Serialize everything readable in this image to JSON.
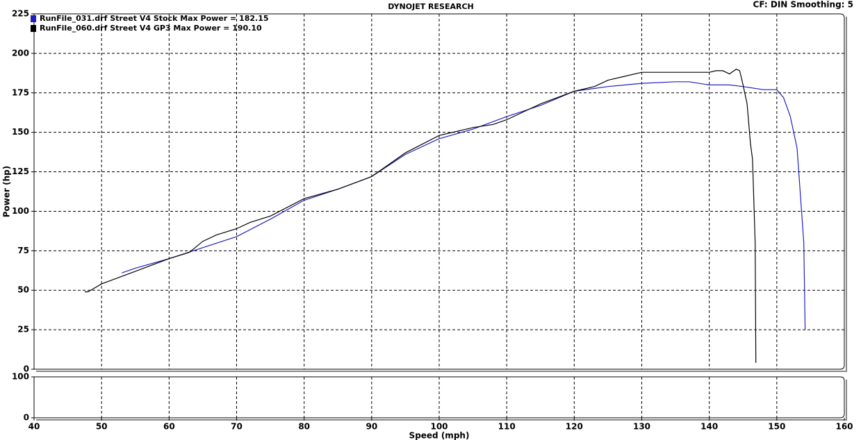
{
  "chart_data": [
    {
      "type": "line",
      "title": "DYNOJET RESEARCH",
      "annotation": "CF: DIN  Smoothing: 5",
      "ylabel": "Power (hp)",
      "ylim": [
        0,
        225
      ],
      "yticks": [
        0,
        25,
        50,
        75,
        100,
        125,
        150,
        175,
        200,
        225
      ],
      "xlim": [
        40,
        160
      ],
      "xticks": [
        40,
        50,
        60,
        70,
        80,
        90,
        100,
        110,
        120,
        130,
        140,
        150,
        160
      ],
      "grid": true,
      "series": [
        {
          "name": "RunFile_031.drf Street V4 Stock Max Power = 182.15",
          "color": "#1f1fbf",
          "x": [
            53,
            55,
            60,
            65,
            70,
            75,
            80,
            85,
            90,
            95,
            100,
            105,
            110,
            115,
            120,
            125,
            130,
            135,
            137,
            140,
            143,
            145,
            148,
            150,
            151,
            152,
            153,
            154,
            154.2
          ],
          "values": [
            61,
            64,
            70,
            77,
            84,
            95,
            107,
            114,
            122,
            136,
            146,
            152,
            160,
            167,
            176,
            179,
            181,
            182,
            182,
            180,
            180,
            179,
            177,
            177,
            172,
            160,
            140,
            80,
            25
          ]
        },
        {
          "name": "RunFile_060.drf Street V4 GP3 Max Power = 190.10",
          "color": "#000000",
          "x": [
            47.5,
            48,
            50,
            55,
            60,
            63,
            65,
            67,
            70,
            72,
            75,
            80,
            85,
            90,
            95,
            100,
            105,
            108,
            110,
            115,
            120,
            123,
            125,
            127,
            130,
            135,
            140,
            141,
            142,
            143,
            144,
            144.5,
            145,
            145.6,
            146.1,
            146.4,
            146.8,
            146.9
          ],
          "values": [
            49,
            49,
            54,
            62,
            70,
            74,
            81,
            85,
            89,
            93,
            97,
            108,
            114,
            122,
            137,
            148,
            153,
            155,
            158,
            168,
            176,
            179,
            183,
            185,
            188,
            188,
            188,
            189,
            189,
            187,
            190,
            189,
            180,
            168,
            143,
            133,
            80,
            4
          ]
        }
      ]
    },
    {
      "type": "line",
      "xlabel": "Speed (mph)",
      "ylim": [
        0,
        100
      ],
      "yticks": [
        0,
        100
      ],
      "xlim": [
        40,
        160
      ],
      "xticks": [
        40,
        50,
        60,
        70,
        80,
        90,
        100,
        110,
        120,
        130,
        140,
        150,
        160
      ],
      "grid": true
    }
  ]
}
